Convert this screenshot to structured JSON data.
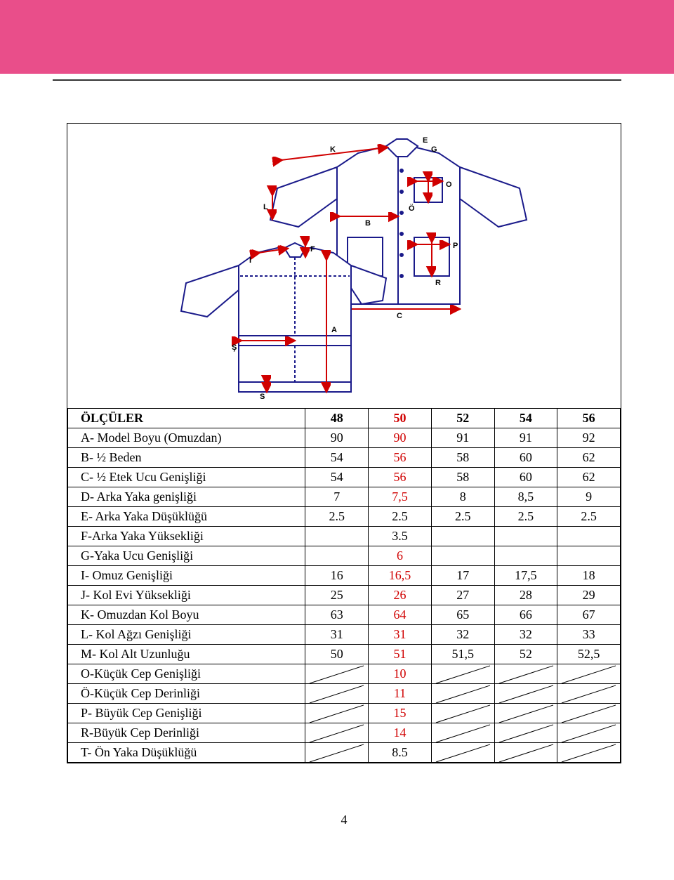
{
  "colors": {
    "band": "#e94e8a",
    "red_text": "#d00000",
    "border": "#000000",
    "diagram_outline": "#1a1a8a",
    "diagram_arrow": "#d00000"
  },
  "page_number": "4",
  "diagram": {
    "labels": {
      "K": "K",
      "L": "L",
      "B": "B",
      "I": "I",
      "F": "F",
      "E": "E",
      "G": "G",
      "O": "O",
      "Ö": "Ö",
      "P": "P",
      "R": "R",
      "A": "A",
      "S": "S",
      "Ş": "Ş",
      "C": "C"
    }
  },
  "table": {
    "header": {
      "title": "ÖLÇÜLER",
      "sizes": [
        "48",
        "50",
        "52",
        "54",
        "56"
      ]
    },
    "rows_top": [
      {
        "label": "A- Model Boyu (Omuzdan)",
        "vals": [
          "90",
          "90",
          "91",
          "91",
          "92"
        ],
        "red_cols": [
          1
        ]
      },
      {
        "label": "B- ½ Beden",
        "vals": [
          "54",
          "56",
          "58",
          "60",
          "62"
        ],
        "red_cols": [
          1
        ]
      },
      {
        "label": "C- ½ Etek Ucu Genişliği",
        "vals": [
          "54",
          "56",
          "58",
          "60",
          "62"
        ],
        "red_cols": [
          1
        ]
      },
      {
        "label": "D- Arka Yaka genişliği",
        "vals": [
          "7",
          "7,5",
          "8",
          "8,5",
          "9"
        ],
        "red_cols": [
          1
        ]
      },
      {
        "label": "E- Arka Yaka Düşüklüğü",
        "vals": [
          "2.5",
          "2.5",
          "2.5",
          "2.5",
          "2.5"
        ],
        "red_cols": []
      }
    ],
    "rows_mid": [
      {
        "label": "F-Arka Yaka Yüksekliği",
        "vals": [
          "",
          "3.5",
          "",
          "",
          ""
        ],
        "red_cols": []
      },
      {
        "label": "G-Yaka Ucu Genişliği",
        "vals": [
          "",
          "6",
          "",
          "",
          ""
        ],
        "red_cols": [
          1
        ]
      },
      {
        "label": "I- Omuz Genişliği",
        "vals": [
          "16",
          "16,5",
          "17",
          "17,5",
          "18"
        ],
        "red_cols": [
          1
        ]
      },
      {
        "label": "J- Kol Evi Yüksekliği",
        "vals": [
          "25",
          "26",
          "27",
          "28",
          "29"
        ],
        "red_cols": [
          1
        ]
      },
      {
        "label": "K- Omuzdan Kol Boyu",
        "vals": [
          "63",
          "64",
          "65",
          "66",
          "67"
        ],
        "red_cols": [
          1
        ]
      },
      {
        "label": "L- Kol Ağzı Genişliği",
        "vals": [
          "31",
          "31",
          "32",
          "32",
          "33"
        ],
        "red_cols": [
          1
        ]
      },
      {
        "label": "M- Kol Alt Uzunluğu",
        "vals": [
          "50",
          "51",
          "51,5",
          "52",
          "52,5"
        ],
        "red_cols": [
          1
        ]
      }
    ],
    "rows_slash": [
      {
        "label": "O-Küçük Cep Genişliği",
        "center": "10",
        "center_red": true
      },
      {
        "label": "Ö-Küçük Cep Derinliği",
        "center": "11",
        "center_red": true
      },
      {
        "label": "P- Büyük Cep Genişliği",
        "center": "15",
        "center_red": true
      },
      {
        "label": "R-Büyük Cep Derinliği",
        "center": "14",
        "center_red": true
      },
      {
        "label": "T- Ön Yaka Düşüklüğü",
        "center": "8.5",
        "center_red": false
      }
    ]
  }
}
